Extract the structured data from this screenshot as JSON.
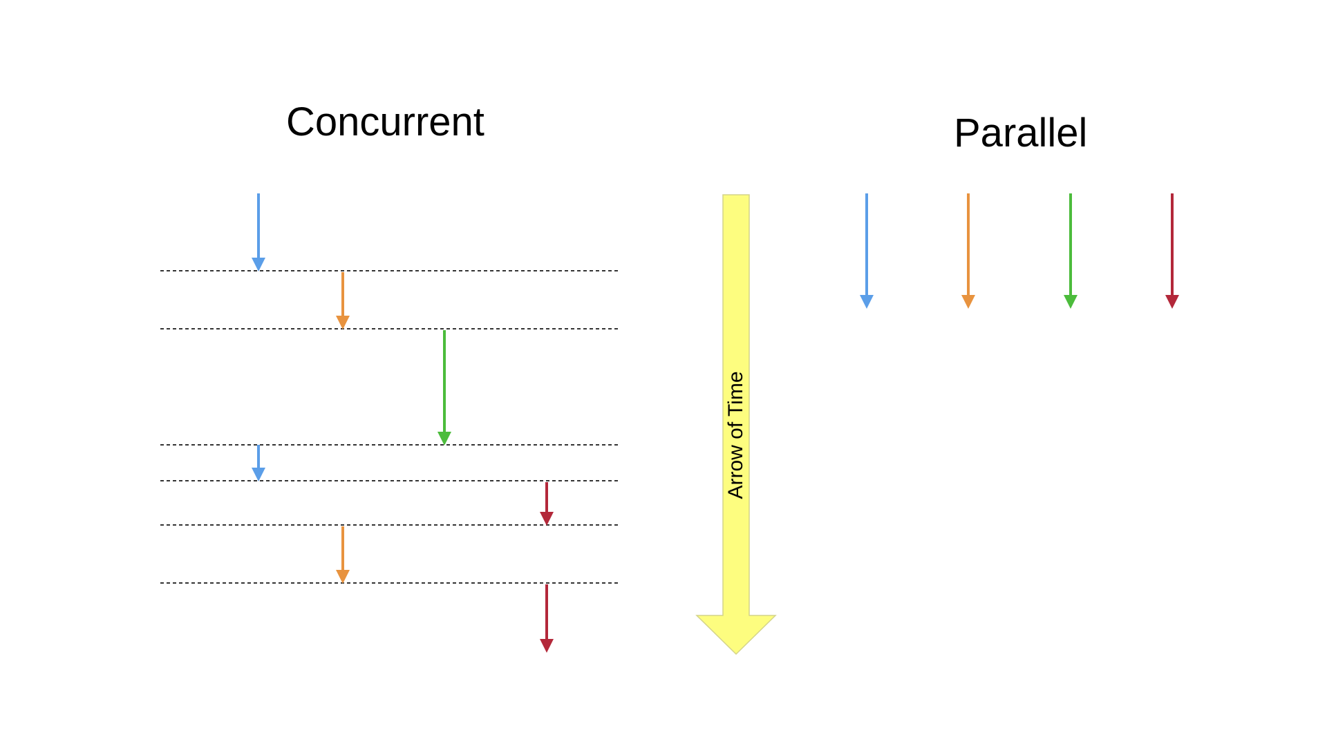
{
  "titles": {
    "concurrent": "Concurrent",
    "parallel": "Parallel"
  },
  "time_arrow": {
    "label": "Arrow of Time",
    "color": "#fdfd7f"
  },
  "colors": {
    "blue": "#5b9ee8",
    "orange": "#e8933f",
    "green": "#4cbc3c",
    "red": "#b3283a"
  },
  "concurrent_tasks_order": [
    "blue",
    "orange",
    "green",
    "blue",
    "red",
    "orange",
    "red"
  ],
  "parallel_tasks_order": [
    "blue",
    "orange",
    "green",
    "red"
  ]
}
